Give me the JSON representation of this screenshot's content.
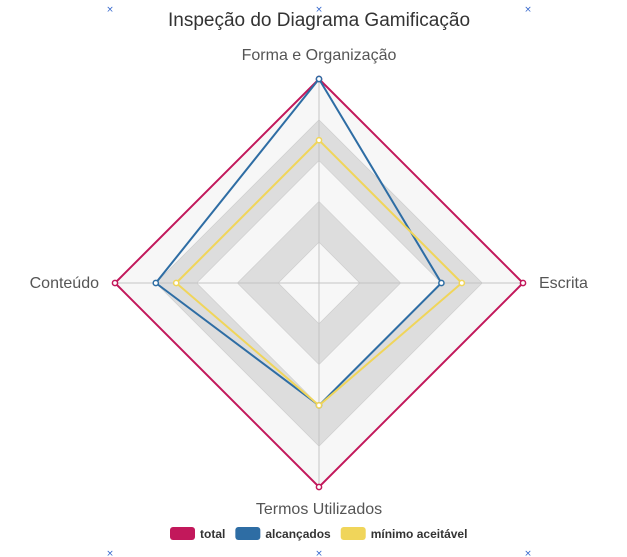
{
  "chart_data": {
    "type": "radar",
    "title": "Inspeção do Diagrama Gamificação",
    "axes": [
      "Forma e Organização",
      "Escrita",
      "Termos Utilizados",
      "Conteúdo"
    ],
    "rlim": [
      0,
      5
    ],
    "series": [
      {
        "name": "total",
        "values": [
          5,
          5,
          5,
          5
        ],
        "color": "#c2185b"
      },
      {
        "name": "alcançados",
        "values": [
          5,
          3,
          3,
          4
        ],
        "color": "#2e6da4"
      },
      {
        "name": "mínimo aceitável",
        "values": [
          3.5,
          3.5,
          3,
          3.5
        ],
        "color": "#f0d55a"
      }
    ],
    "bands": [
      {
        "from": 0,
        "to": 1,
        "color": "#f7f7f7"
      },
      {
        "from": 1,
        "to": 2,
        "color": "#dddddd"
      },
      {
        "from": 2,
        "to": 3,
        "color": "#f7f7f7"
      },
      {
        "from": 3,
        "to": 4,
        "color": "#dddddd"
      },
      {
        "from": 4,
        "to": 5,
        "color": "#f7f7f7"
      }
    ],
    "legend": "bottom-center"
  },
  "decor": {
    "corner_mark": "×"
  }
}
